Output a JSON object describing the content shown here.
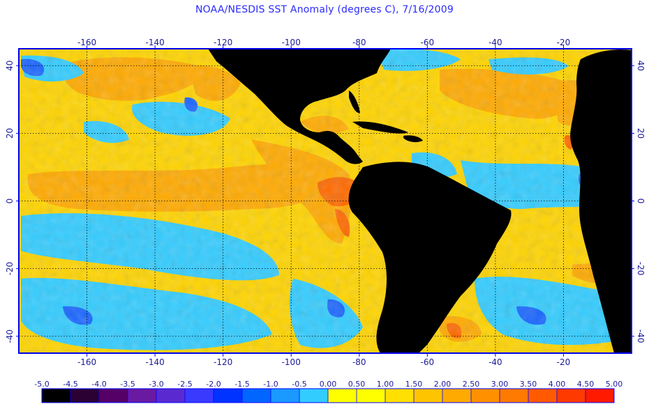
{
  "title": "NOAA/NESDIS SST Anomaly (degrees C), 7/16/2009",
  "map": {
    "lon_range": [
      -180,
      0
    ],
    "lat_range": [
      -45,
      45
    ],
    "lon_ticks": [
      -160,
      -140,
      -120,
      -100,
      -80,
      -60,
      -40,
      -20
    ],
    "lon_tick_labels": [
      "-160",
      "-140",
      "-120",
      "-100",
      "-80",
      "-60",
      "-40",
      "-20"
    ],
    "lat_ticks": [
      40,
      20,
      0,
      -20,
      -40
    ],
    "lat_tick_labels": [
      "40",
      "20",
      "0",
      "-20",
      "-40"
    ],
    "gridlines": "dotted",
    "land_color": "#000000",
    "frame_color": "#0000ff"
  },
  "colorbar": {
    "tick_labels": [
      "-5.0",
      "-4.5",
      "-4.0",
      "-3.5",
      "-3.0",
      "-2.5",
      "-2.0",
      "-1.5",
      "-1.0",
      "-0.5",
      "0.00",
      "0.50",
      "1.00",
      "1.50",
      "2.00",
      "2.50",
      "3.00",
      "3.50",
      "4.00",
      "4.50",
      "5.00"
    ],
    "colors": [
      "#000000",
      "#2b0033",
      "#540066",
      "#6a1aa0",
      "#5a2ad0",
      "#3a3aff",
      "#0033ff",
      "#0066ff",
      "#1a99ff",
      "#33ccff",
      "#ffff00",
      "#ffff00",
      "#ffe000",
      "#ffc400",
      "#ffaa00",
      "#ff9000",
      "#ff7a00",
      "#ff5a00",
      "#ff3a00",
      "#ff1a00"
    ]
  }
}
